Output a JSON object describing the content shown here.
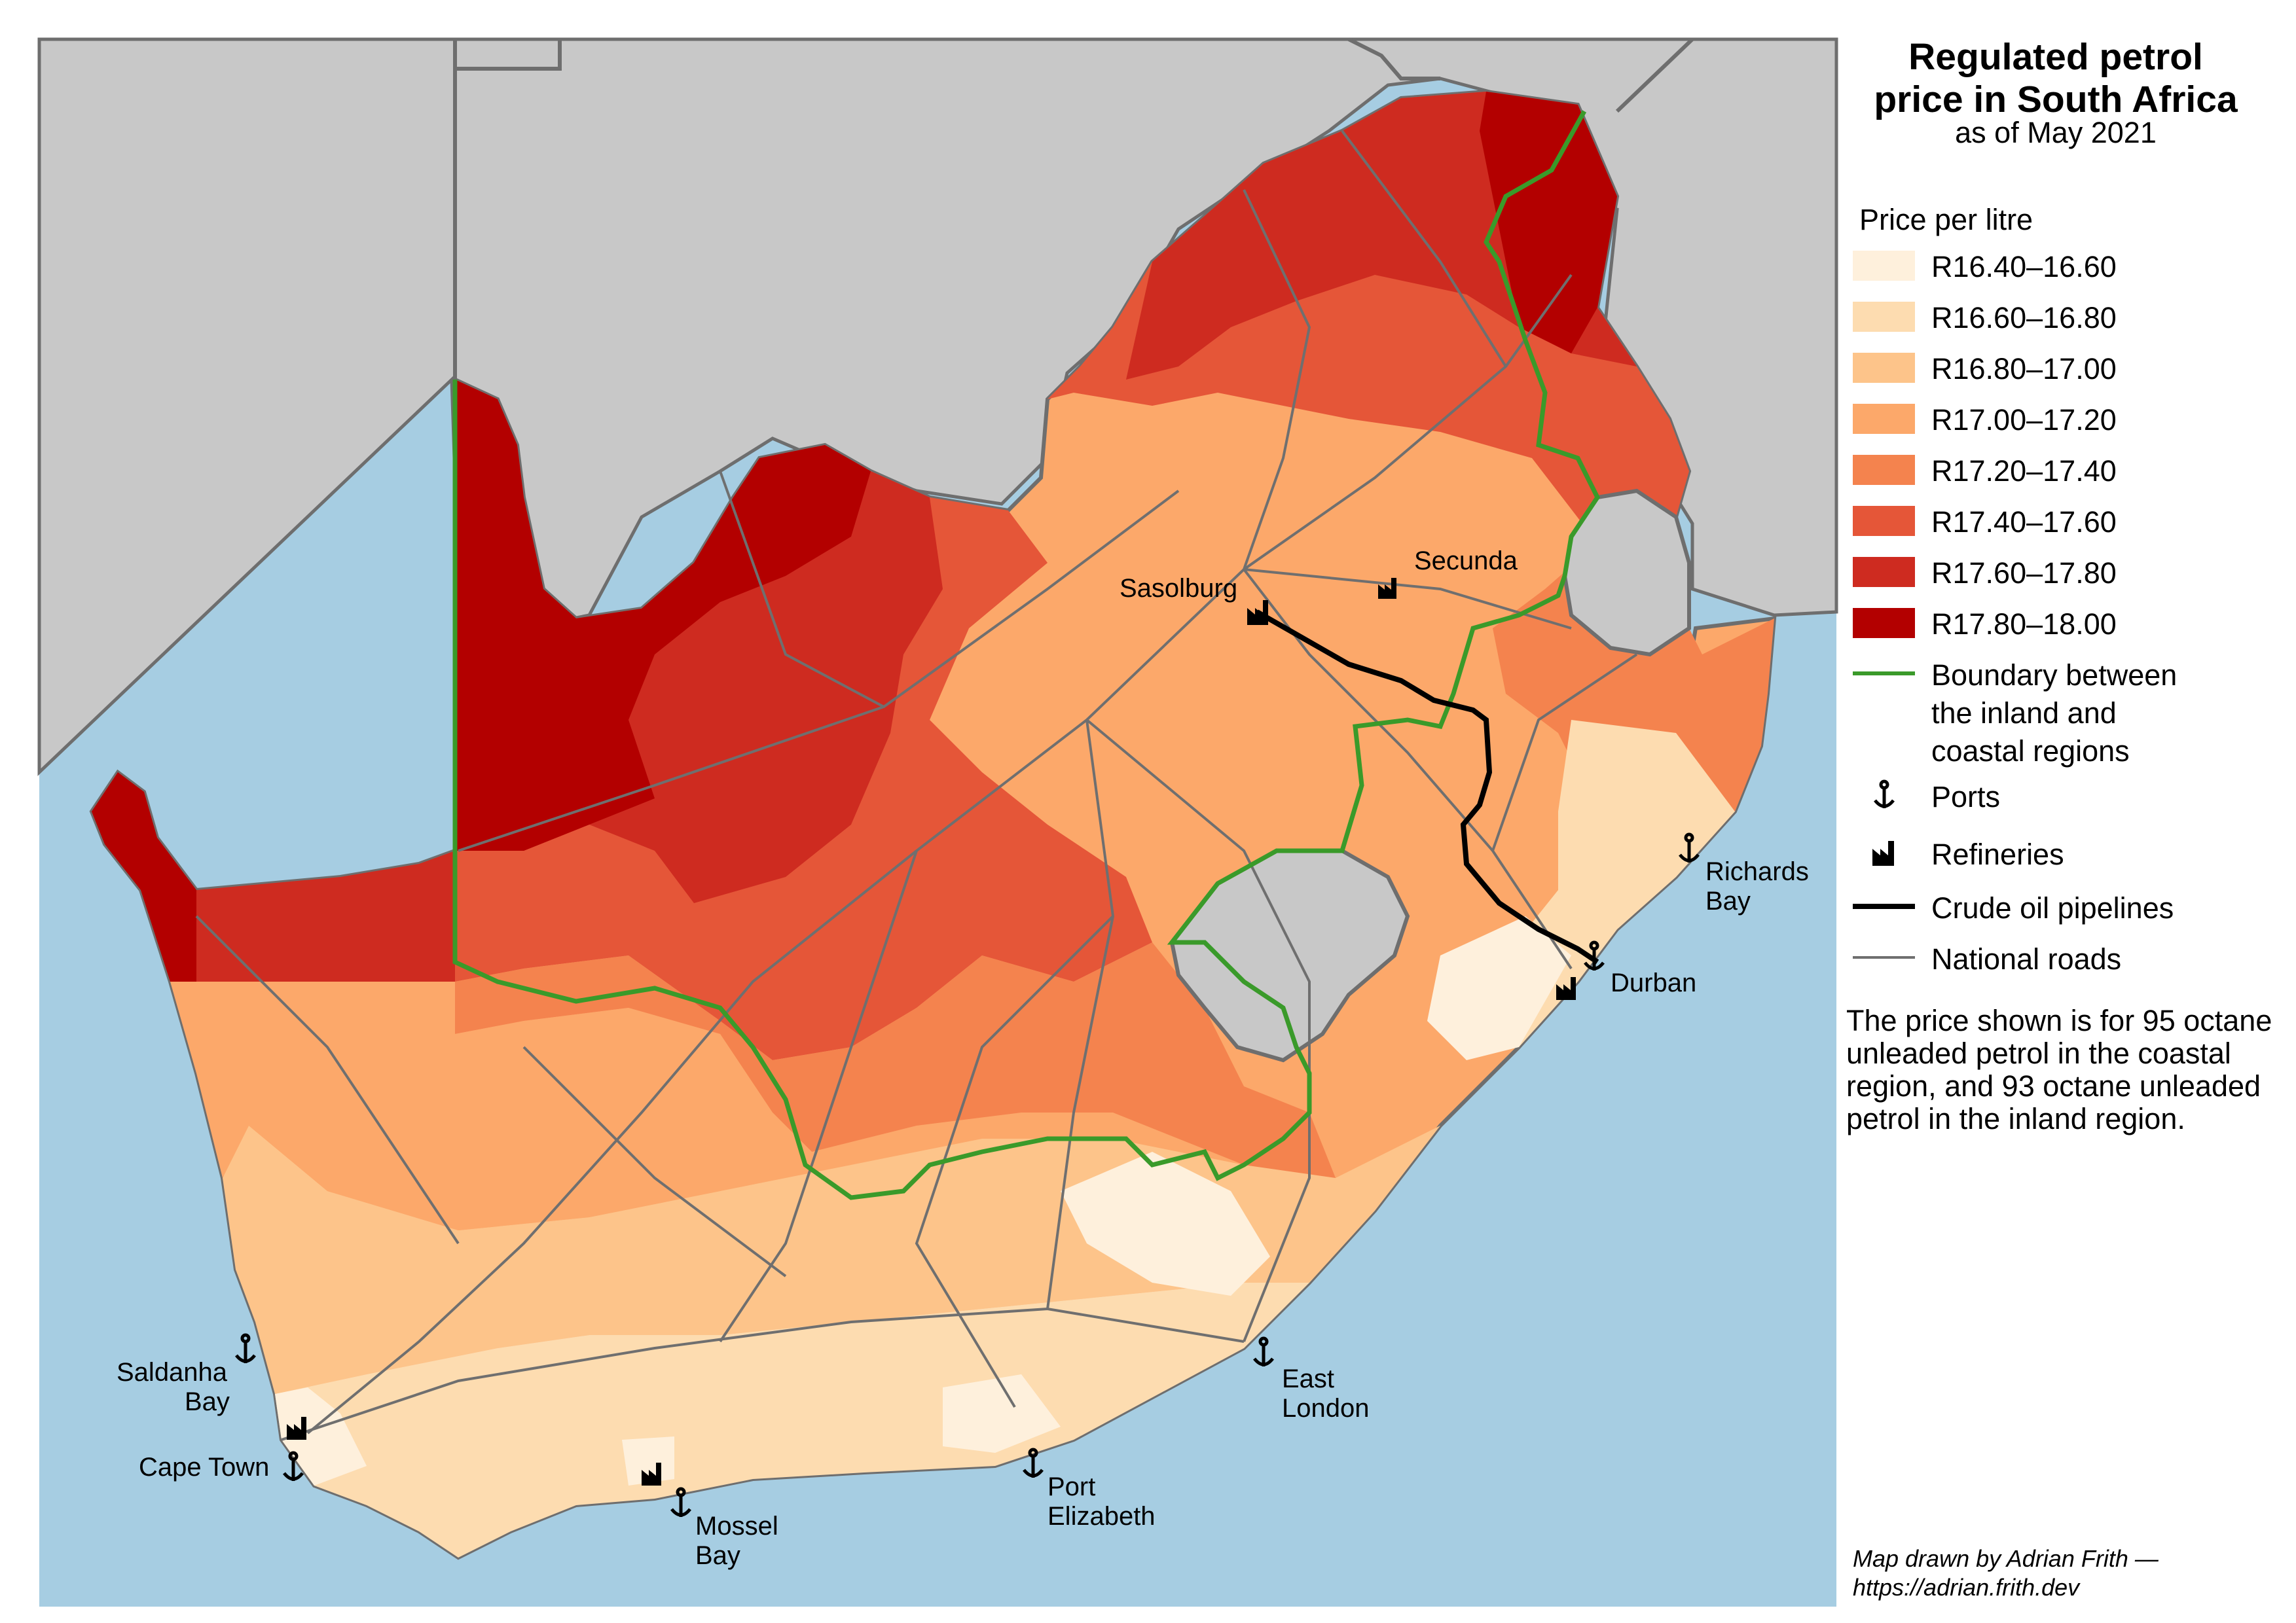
{
  "title_line1": "Regulated petrol",
  "title_line2": "price in South Africa",
  "subtitle": "as of May 2021",
  "legend": {
    "heading": "Price per litre",
    "classes": [
      {
        "label": "R16.40–16.60",
        "color": "#fef0dc"
      },
      {
        "label": "R16.60–16.80",
        "color": "#fddcb0"
      },
      {
        "label": "R16.80–17.00",
        "color": "#fdc48a"
      },
      {
        "label": "R17.00–17.20",
        "color": "#fca86a"
      },
      {
        "label": "R17.20–17.40",
        "color": "#f4834e"
      },
      {
        "label": "R17.40–17.60",
        "color": "#e55638"
      },
      {
        "label": "R17.60–17.80",
        "color": "#ce2b20"
      },
      {
        "label": "R17.80–18.00",
        "color": "#b30000"
      }
    ],
    "boundary": {
      "line1": "Boundary between",
      "line2": "the inland and",
      "line3": "coastal regions",
      "color": "#3a9a2a"
    },
    "ports_label": "Ports",
    "refineries_label": "Refineries",
    "pipelines_label": "Crude oil pipelines",
    "roads_label": "National roads"
  },
  "note": "The price shown is for 95 octane unleaded petrol in the coastal region,  and 93 octane unleaded petrol in the inland region.",
  "credit_line1": "Map drawn by Adrian Frith —",
  "credit_line2": "https://adrian.frith.dev",
  "places": {
    "sasolburg": "Sasolburg",
    "secunda": "Secunda",
    "richards_bay_1": "Richards",
    "richards_bay_2": "Bay",
    "durban": "Durban",
    "east_london_1": "East",
    "east_london_2": "London",
    "port_elizabeth_1": "Port",
    "port_elizabeth_2": "Elizabeth",
    "mossel_bay_1": "Mossel",
    "mossel_bay_2": "Bay",
    "cape_town": "Cape Town",
    "saldanha_bay_1": "Saldanha",
    "saldanha_bay_2": "Bay"
  },
  "colors": {
    "sea": "#a6cde2",
    "neighbour_land": "#c8c8c8",
    "border": "#6e6e6e",
    "road": "#6f6f6f",
    "pipeline": "#000000"
  }
}
